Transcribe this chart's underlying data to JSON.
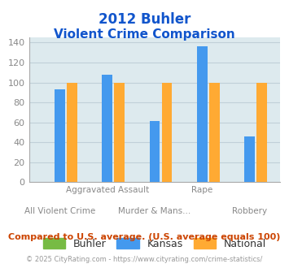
{
  "title_line1": "2012 Buhler",
  "title_line2": "Violent Crime Comparison",
  "buhler_values": [
    0,
    0,
    0,
    0,
    0
  ],
  "kansas_values": [
    93,
    108,
    61,
    136,
    46
  ],
  "national_values": [
    100,
    100,
    100,
    100,
    100
  ],
  "buhler_color": "#77bb44",
  "kansas_color": "#4499ee",
  "national_color": "#ffaa33",
  "bg_color": "#ddeaee",
  "title_color": "#1155cc",
  "ylabel_max": 140,
  "yticks": [
    0,
    20,
    40,
    60,
    80,
    100,
    120,
    140
  ],
  "footer_text": "Compared to U.S. average. (U.S. average equals 100)",
  "copyright_text": "© 2025 CityRating.com - https://www.cityrating.com/crime-statistics/",
  "footer_color": "#cc4400",
  "copyright_color": "#999999",
  "grid_color": "#c0d0d8",
  "axis_color": "#aaaaaa",
  "tick_label_color": "#888888",
  "upper_labels": [
    "",
    "Aggravated Assault",
    "",
    "Rape",
    ""
  ],
  "lower_labels": [
    "All Violent Crime",
    "",
    "Murder & Mans...",
    "",
    "Robbery"
  ]
}
